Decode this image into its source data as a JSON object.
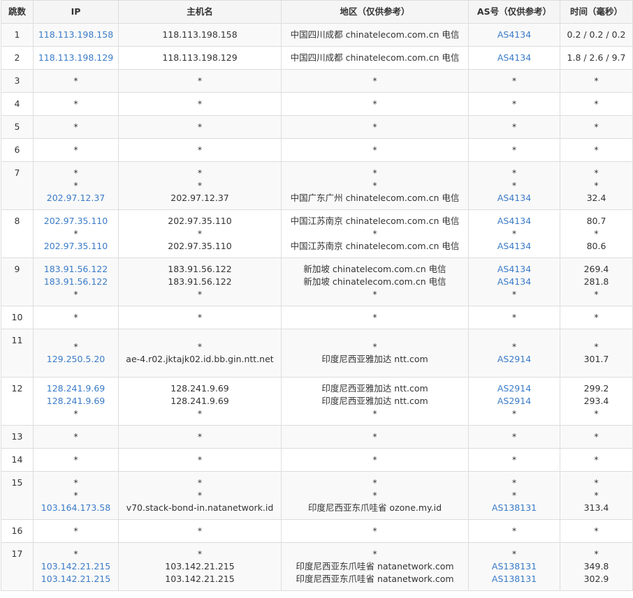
{
  "columns": [
    "跳数",
    "IP",
    "主机名",
    "地区（仅供参考）",
    "AS号（仅供参考）",
    "时间（毫秒）"
  ],
  "rows": [
    {
      "hop": "1",
      "lines": [
        {
          "ip": "118.113.198.158",
          "host": "118.113.198.158",
          "region": "中国四川成都 chinatelecom.com.cn 电信",
          "as": "AS4134",
          "time": "0.2 / 0.2 / 0.2"
        }
      ]
    },
    {
      "hop": "2",
      "lines": [
        {
          "ip": "118.113.198.129",
          "host": "118.113.198.129",
          "region": "中国四川成都 chinatelecom.com.cn 电信",
          "as": "AS4134",
          "time": "1.8 / 2.6 / 9.7"
        }
      ]
    },
    {
      "hop": "3",
      "lines": [
        {
          "ip": "*",
          "host": "*",
          "region": "*",
          "as": "*",
          "time": "*"
        }
      ]
    },
    {
      "hop": "4",
      "lines": [
        {
          "ip": "*",
          "host": "*",
          "region": "*",
          "as": "*",
          "time": "*"
        }
      ]
    },
    {
      "hop": "5",
      "lines": [
        {
          "ip": "*",
          "host": "*",
          "region": "*",
          "as": "*",
          "time": "*"
        }
      ]
    },
    {
      "hop": "6",
      "lines": [
        {
          "ip": "*",
          "host": "*",
          "region": "*",
          "as": "*",
          "time": "*"
        }
      ]
    },
    {
      "hop": "7",
      "lines": [
        {
          "ip": "*",
          "host": "*",
          "region": "*",
          "as": "*",
          "time": "*"
        },
        {
          "ip": "*",
          "host": "*",
          "region": "*",
          "as": "*",
          "time": "*"
        },
        {
          "ip": "202.97.12.37",
          "host": "202.97.12.37",
          "region": "中国广东广州 chinatelecom.com.cn 电信",
          "as": "AS4134",
          "time": "32.4"
        }
      ]
    },
    {
      "hop": "8",
      "lines": [
        {
          "ip": "202.97.35.110",
          "host": "202.97.35.110",
          "region": "中国江苏南京 chinatelecom.com.cn 电信",
          "as": "AS4134",
          "time": "80.7"
        },
        {
          "ip": "*",
          "host": "*",
          "region": "*",
          "as": "*",
          "time": "*"
        },
        {
          "ip": "202.97.35.110",
          "host": "202.97.35.110",
          "region": "中国江苏南京 chinatelecom.com.cn 电信",
          "as": "AS4134",
          "time": "80.6"
        }
      ]
    },
    {
      "hop": "9",
      "lines": [
        {
          "ip": "183.91.56.122",
          "host": "183.91.56.122",
          "region": "新加坡 chinatelecom.com.cn 电信",
          "as": "AS4134",
          "time": "269.4"
        },
        {
          "ip": "183.91.56.122",
          "host": "183.91.56.122",
          "region": "新加坡 chinatelecom.com.cn 电信",
          "as": "AS4134",
          "time": "281.8"
        },
        {
          "ip": "*",
          "host": "*",
          "region": "*",
          "as": "*",
          "time": "*"
        }
      ]
    },
    {
      "hop": "10",
      "lines": [
        {
          "ip": "*",
          "host": "*",
          "region": "*",
          "as": "*",
          "time": "*"
        }
      ]
    },
    {
      "hop": "11",
      "lines": [
        {
          "ip": "*",
          "host": "*",
          "region": "*",
          "as": "*",
          "time": "*"
        },
        {
          "ip": "129.250.5.20",
          "host": "ae-4.r02.jktajk02.id.bb.gin.ntt.net",
          "region": "印度尼西亚雅加达 ntt.com",
          "as": "AS2914",
          "time": "301.7"
        }
      ]
    },
    {
      "hop": "12",
      "lines": [
        {
          "ip": "128.241.9.69",
          "host": "128.241.9.69",
          "region": "印度尼西亚雅加达 ntt.com",
          "as": "AS2914",
          "time": "299.2"
        },
        {
          "ip": "128.241.9.69",
          "host": "128.241.9.69",
          "region": "印度尼西亚雅加达 ntt.com",
          "as": "AS2914",
          "time": "293.4"
        },
        {
          "ip": "*",
          "host": "*",
          "region": "*",
          "as": "*",
          "time": "*"
        }
      ]
    },
    {
      "hop": "13",
      "lines": [
        {
          "ip": "*",
          "host": "*",
          "region": "*",
          "as": "*",
          "time": "*"
        }
      ]
    },
    {
      "hop": "14",
      "lines": [
        {
          "ip": "*",
          "host": "*",
          "region": "*",
          "as": "*",
          "time": "*"
        }
      ]
    },
    {
      "hop": "15",
      "lines": [
        {
          "ip": "*",
          "host": "*",
          "region": "*",
          "as": "*",
          "time": "*"
        },
        {
          "ip": "*",
          "host": "*",
          "region": "*",
          "as": "*",
          "time": "*"
        },
        {
          "ip": "103.164.173.58",
          "host": "v70.stack-bond-in.natanetwork.id",
          "region": "印度尼西亚东爪哇省 ozone.my.id",
          "as": "AS138131",
          "time": "313.4"
        }
      ]
    },
    {
      "hop": "16",
      "lines": [
        {
          "ip": "*",
          "host": "*",
          "region": "*",
          "as": "*",
          "time": "*"
        }
      ]
    },
    {
      "hop": "17",
      "lines": [
        {
          "ip": "*",
          "host": "*",
          "region": "*",
          "as": "*",
          "time": "*"
        },
        {
          "ip": "103.142.21.215",
          "host": "103.142.21.215",
          "region": "印度尼西亚东爪哇省 natanetwork.com",
          "as": "AS138131",
          "time": "349.8"
        },
        {
          "ip": "103.142.21.215",
          "host": "103.142.21.215",
          "region": "印度尼西亚东爪哇省 natanetwork.com",
          "as": "AS138131",
          "time": "302.9"
        }
      ]
    }
  ]
}
